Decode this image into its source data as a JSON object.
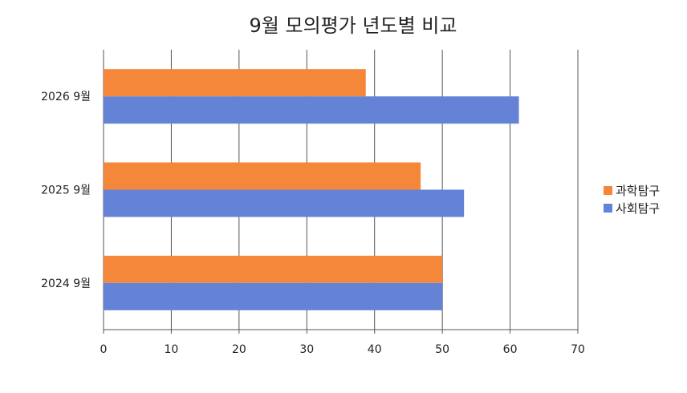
{
  "chart_data": {
    "type": "bar",
    "orientation": "horizontal",
    "title": "9월 모의평가 년도별 비교",
    "xlabel": "",
    "ylabel": "",
    "categories": [
      "2024 9월",
      "2025 9월",
      "2026 9월"
    ],
    "series": [
      {
        "name": "과학탐구",
        "values": [
          50,
          46.8,
          38.7
        ],
        "color": "#F5873A"
      },
      {
        "name": "사회탐구",
        "values": [
          50,
          53.2,
          61.3
        ],
        "color": "#6483D6"
      }
    ],
    "xlim": [
      0,
      70
    ],
    "xticks": [
      "0",
      "10",
      "20",
      "30",
      "40",
      "50",
      "60",
      "70"
    ],
    "grid": true,
    "legend_position": "right"
  }
}
